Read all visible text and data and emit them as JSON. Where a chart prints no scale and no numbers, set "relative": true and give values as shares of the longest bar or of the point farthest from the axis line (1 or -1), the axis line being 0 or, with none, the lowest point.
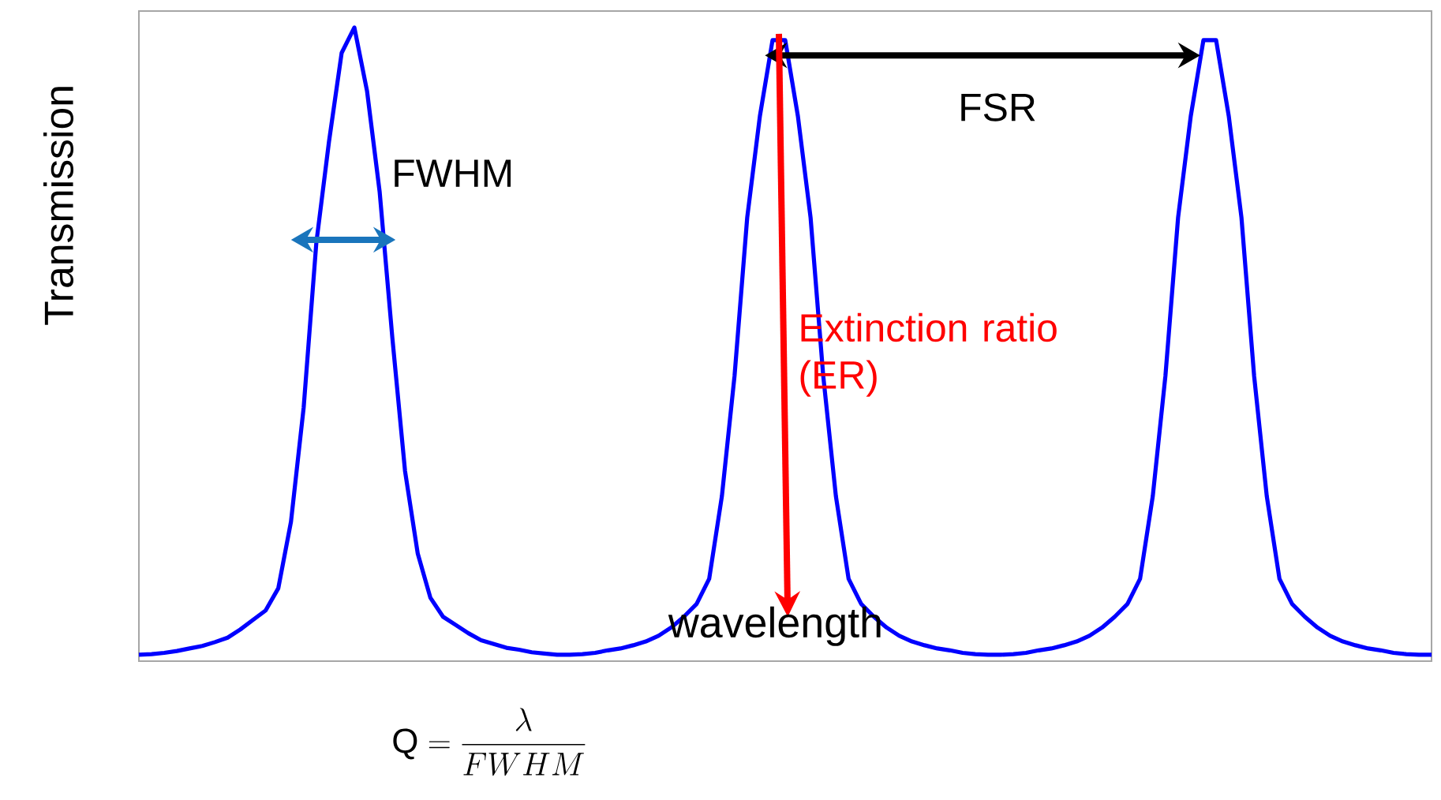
{
  "chart_data": {
    "type": "line",
    "relative": true,
    "xlabel": "wavelength",
    "ylabel": "Transmission",
    "categories": [
      null,
      null,
      null,
      null,
      null,
      null,
      null,
      null,
      null,
      null,
      null,
      null,
      null,
      null,
      null,
      null,
      null,
      null,
      null,
      null,
      null,
      null,
      null,
      null,
      null,
      null,
      null,
      null,
      null,
      null,
      null,
      null,
      null,
      null,
      null,
      null,
      null,
      null,
      null,
      null,
      null,
      null,
      null,
      null,
      null,
      null,
      null,
      null,
      null,
      null,
      null,
      null,
      null,
      null,
      null,
      null,
      null,
      null,
      null,
      null,
      null,
      null,
      null,
      null,
      null,
      null,
      null,
      null,
      null,
      null,
      null,
      null,
      null,
      null,
      null,
      null,
      null,
      null,
      null,
      null,
      null,
      null,
      null,
      null,
      null,
      null,
      null,
      null,
      null,
      null,
      null,
      null,
      null,
      null,
      null,
      null,
      null,
      null,
      null,
      null,
      null,
      null,
      null
    ],
    "series": [
      {
        "color": "#0000ff",
        "values": [
          0.01,
          0.011,
          0.013,
          0.016,
          0.02,
          0.024,
          0.03,
          0.037,
          0.05,
          0.065,
          0.08,
          0.115,
          0.22,
          0.4,
          0.66,
          0.82,
          0.96,
          1,
          0.9,
          0.74,
          0.51,
          0.3,
          0.17,
          0.1,
          0.07,
          0.057,
          0.044,
          0.033,
          0.027,
          0.021,
          0.018,
          0.014,
          0.012,
          0.01,
          0.01,
          0.011,
          0.013,
          0.017,
          0.02,
          0.025,
          0.031,
          0.04,
          0.053,
          0.07,
          0.09,
          0.13,
          0.26,
          0.45,
          0.7,
          0.86,
          0.98,
          0.98,
          0.86,
          0.7,
          0.45,
          0.26,
          0.13,
          0.09,
          0.07,
          0.053,
          0.04,
          0.031,
          0.025,
          0.02,
          0.017,
          0.013,
          0.011,
          0.01,
          0.01,
          0.011,
          0.013,
          0.017,
          0.02,
          0.025,
          0.031,
          0.04,
          0.053,
          0.07,
          0.09,
          0.13,
          0.26,
          0.45,
          0.7,
          0.86,
          0.98,
          0.98,
          0.86,
          0.7,
          0.45,
          0.26,
          0.13,
          0.09,
          0.07,
          0.053,
          0.04,
          0.031,
          0.025,
          0.02,
          0.017,
          0.013,
          0.011,
          0.01,
          0.01
        ]
      }
    ],
    "annotations": [
      "FWHM",
      "FSR",
      "Extinction ratio (ER)",
      "\\mathrm{Q} = \\frac{\\lambda}{FWHM}"
    ]
  }
}
